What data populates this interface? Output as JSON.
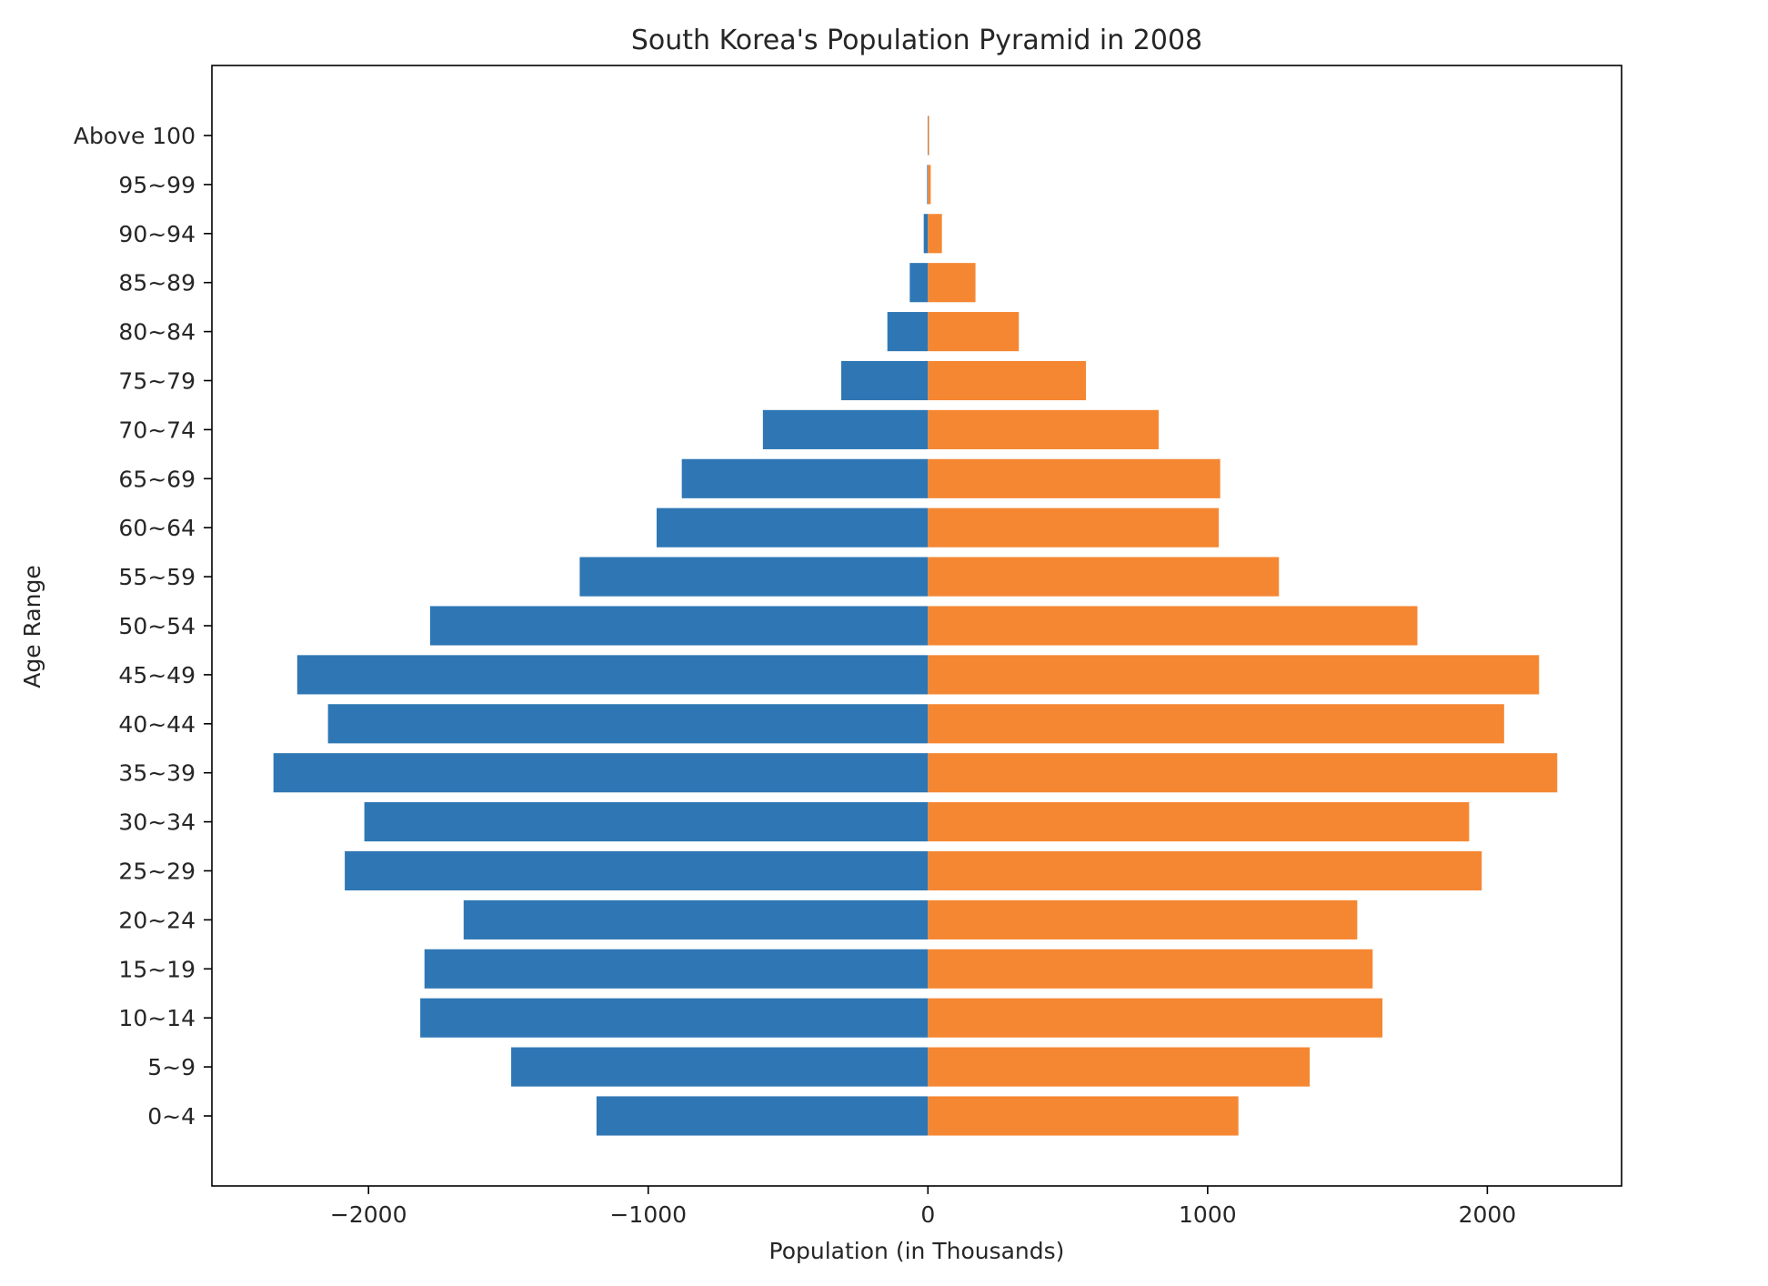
{
  "chart_data": {
    "type": "bar",
    "orientation": "horizontal",
    "title": "South Korea's Population Pyramid in 2008",
    "xlabel": "Population (in Thousands)",
    "ylabel": "Age Range",
    "xlim": [
      -2560,
      2480
    ],
    "xticks": [
      -2000,
      -1000,
      0,
      1000,
      2000
    ],
    "xtick_labels": [
      "−2000",
      "−1000",
      "0",
      "1000",
      "2000"
    ],
    "categories": [
      "0~4",
      "5~9",
      "10~14",
      "15~19",
      "20~24",
      "25~29",
      "30~34",
      "35~39",
      "40~44",
      "45~49",
      "50~54",
      "55~59",
      "60~64",
      "65~69",
      "70~74",
      "75~79",
      "80~84",
      "85~89",
      "90~94",
      "95~99",
      "Above 100"
    ],
    "grid": false,
    "series": [
      {
        "color": "#2f77b4",
        "values": [
          -1185,
          -1490,
          -1815,
          -1800,
          -1660,
          -2085,
          -2015,
          -2340,
          -2145,
          -2255,
          -1780,
          -1245,
          -970,
          -880,
          -590,
          -310,
          -145,
          -65,
          -15,
          -3,
          -1
        ]
      },
      {
        "color": "#f58733",
        "values": [
          1110,
          1365,
          1625,
          1590,
          1535,
          1980,
          1935,
          2250,
          2060,
          2185,
          1750,
          1255,
          1040,
          1045,
          825,
          565,
          325,
          170,
          50,
          10,
          4
        ]
      }
    ]
  }
}
